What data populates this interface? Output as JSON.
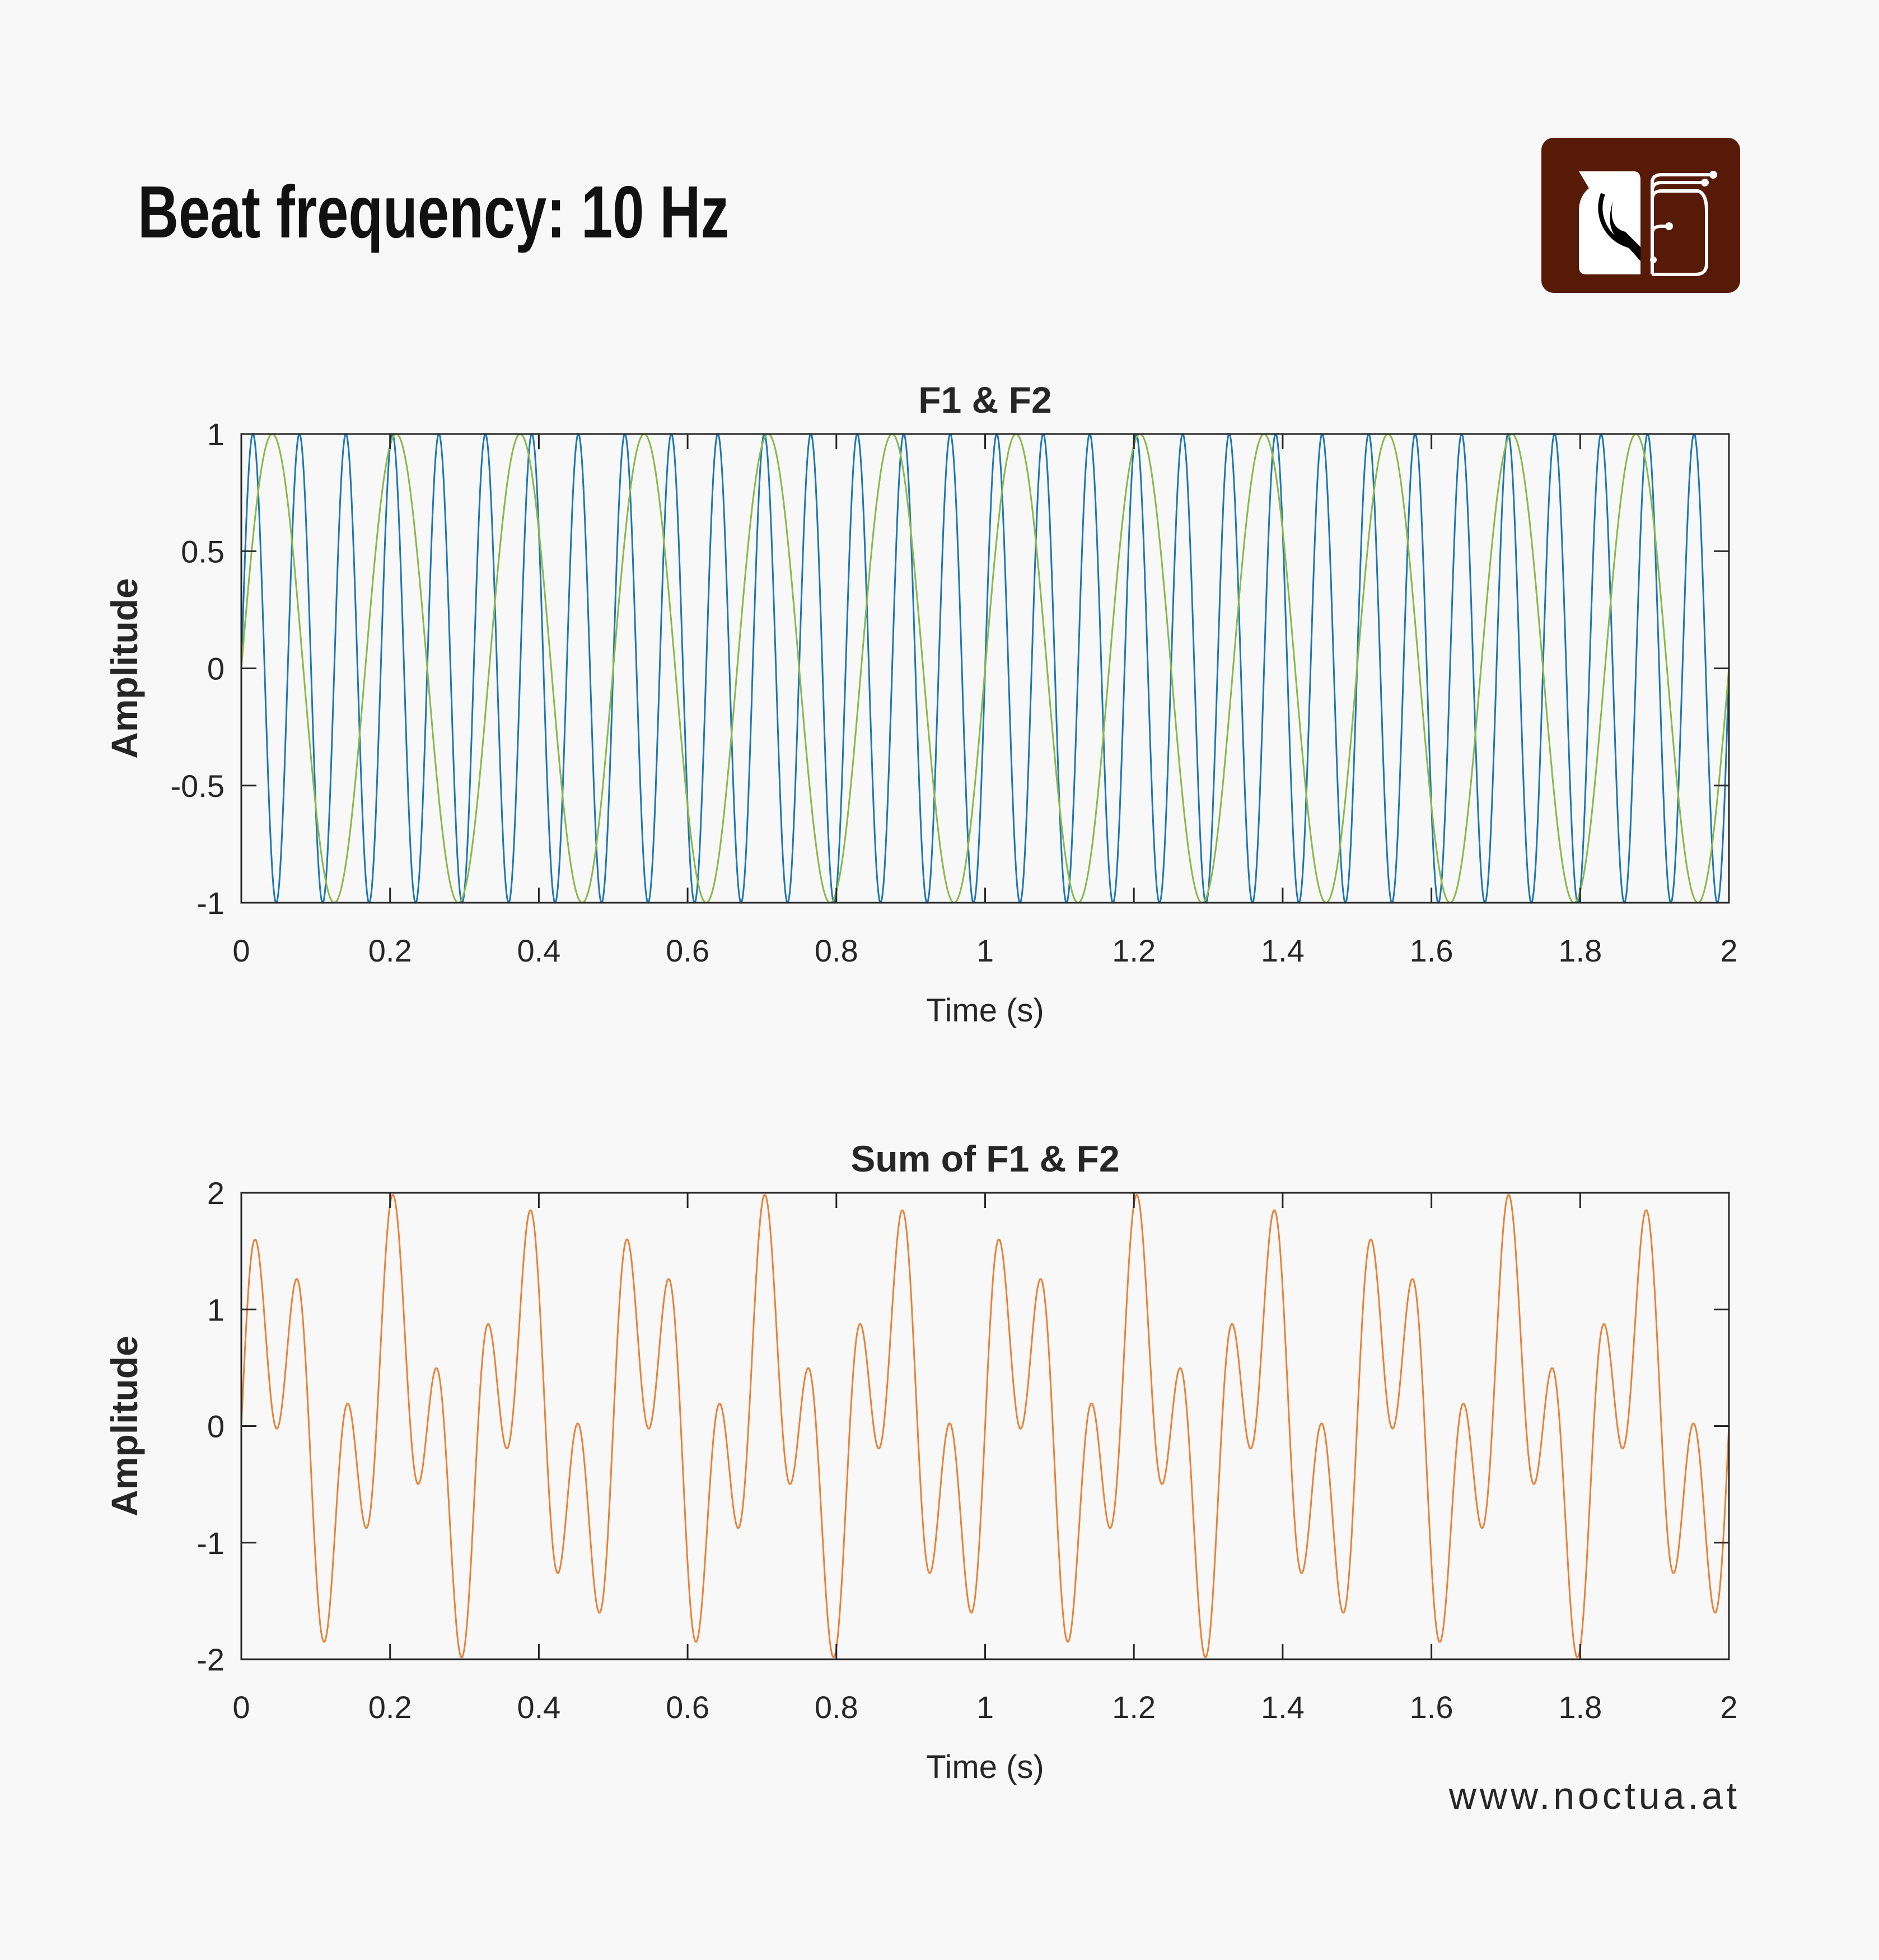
{
  "header": {
    "title": "Beat frequency: 10 Hz",
    "logo_colors": {
      "background": "#561a06",
      "foreground": "#ffffff"
    }
  },
  "footer": {
    "url": "www.noctua.at"
  },
  "chart_data": [
    {
      "type": "line",
      "title": "F1 & F2",
      "xlabel": "Time (s)",
      "ylabel": "Amplitude",
      "xlim": [
        0,
        2
      ],
      "ylim": [
        -1,
        1
      ],
      "xticks": [
        "0",
        "0.2",
        "0.4",
        "0.6",
        "0.8",
        "1",
        "1.2",
        "1.4",
        "1.6",
        "1.8",
        "2"
      ],
      "yticks": [
        "-1",
        "-0.5",
        "0",
        "0.5",
        "1"
      ],
      "grid": false,
      "series": [
        {
          "function": "sine",
          "frequency_hz": 16,
          "amplitude": 1,
          "color": "#1f77b4"
        },
        {
          "function": "sine",
          "frequency_hz": 6,
          "amplitude": 1,
          "color": "#8ab84a"
        }
      ]
    },
    {
      "type": "line",
      "title": "Sum of F1 & F2",
      "xlabel": "Time (s)",
      "ylabel": "Amplitude",
      "xlim": [
        0,
        2
      ],
      "ylim": [
        -2,
        2
      ],
      "xticks": [
        "0",
        "0.2",
        "0.4",
        "0.6",
        "0.8",
        "1",
        "1.2",
        "1.4",
        "1.6",
        "1.8",
        "2"
      ],
      "yticks": [
        "-2",
        "-1",
        "0",
        "1",
        "2"
      ],
      "grid": false,
      "series": [
        {
          "function": "sum of sines",
          "components_hz": [
            16,
            6
          ],
          "amplitude": 1,
          "color": "#e8823a"
        }
      ]
    }
  ]
}
